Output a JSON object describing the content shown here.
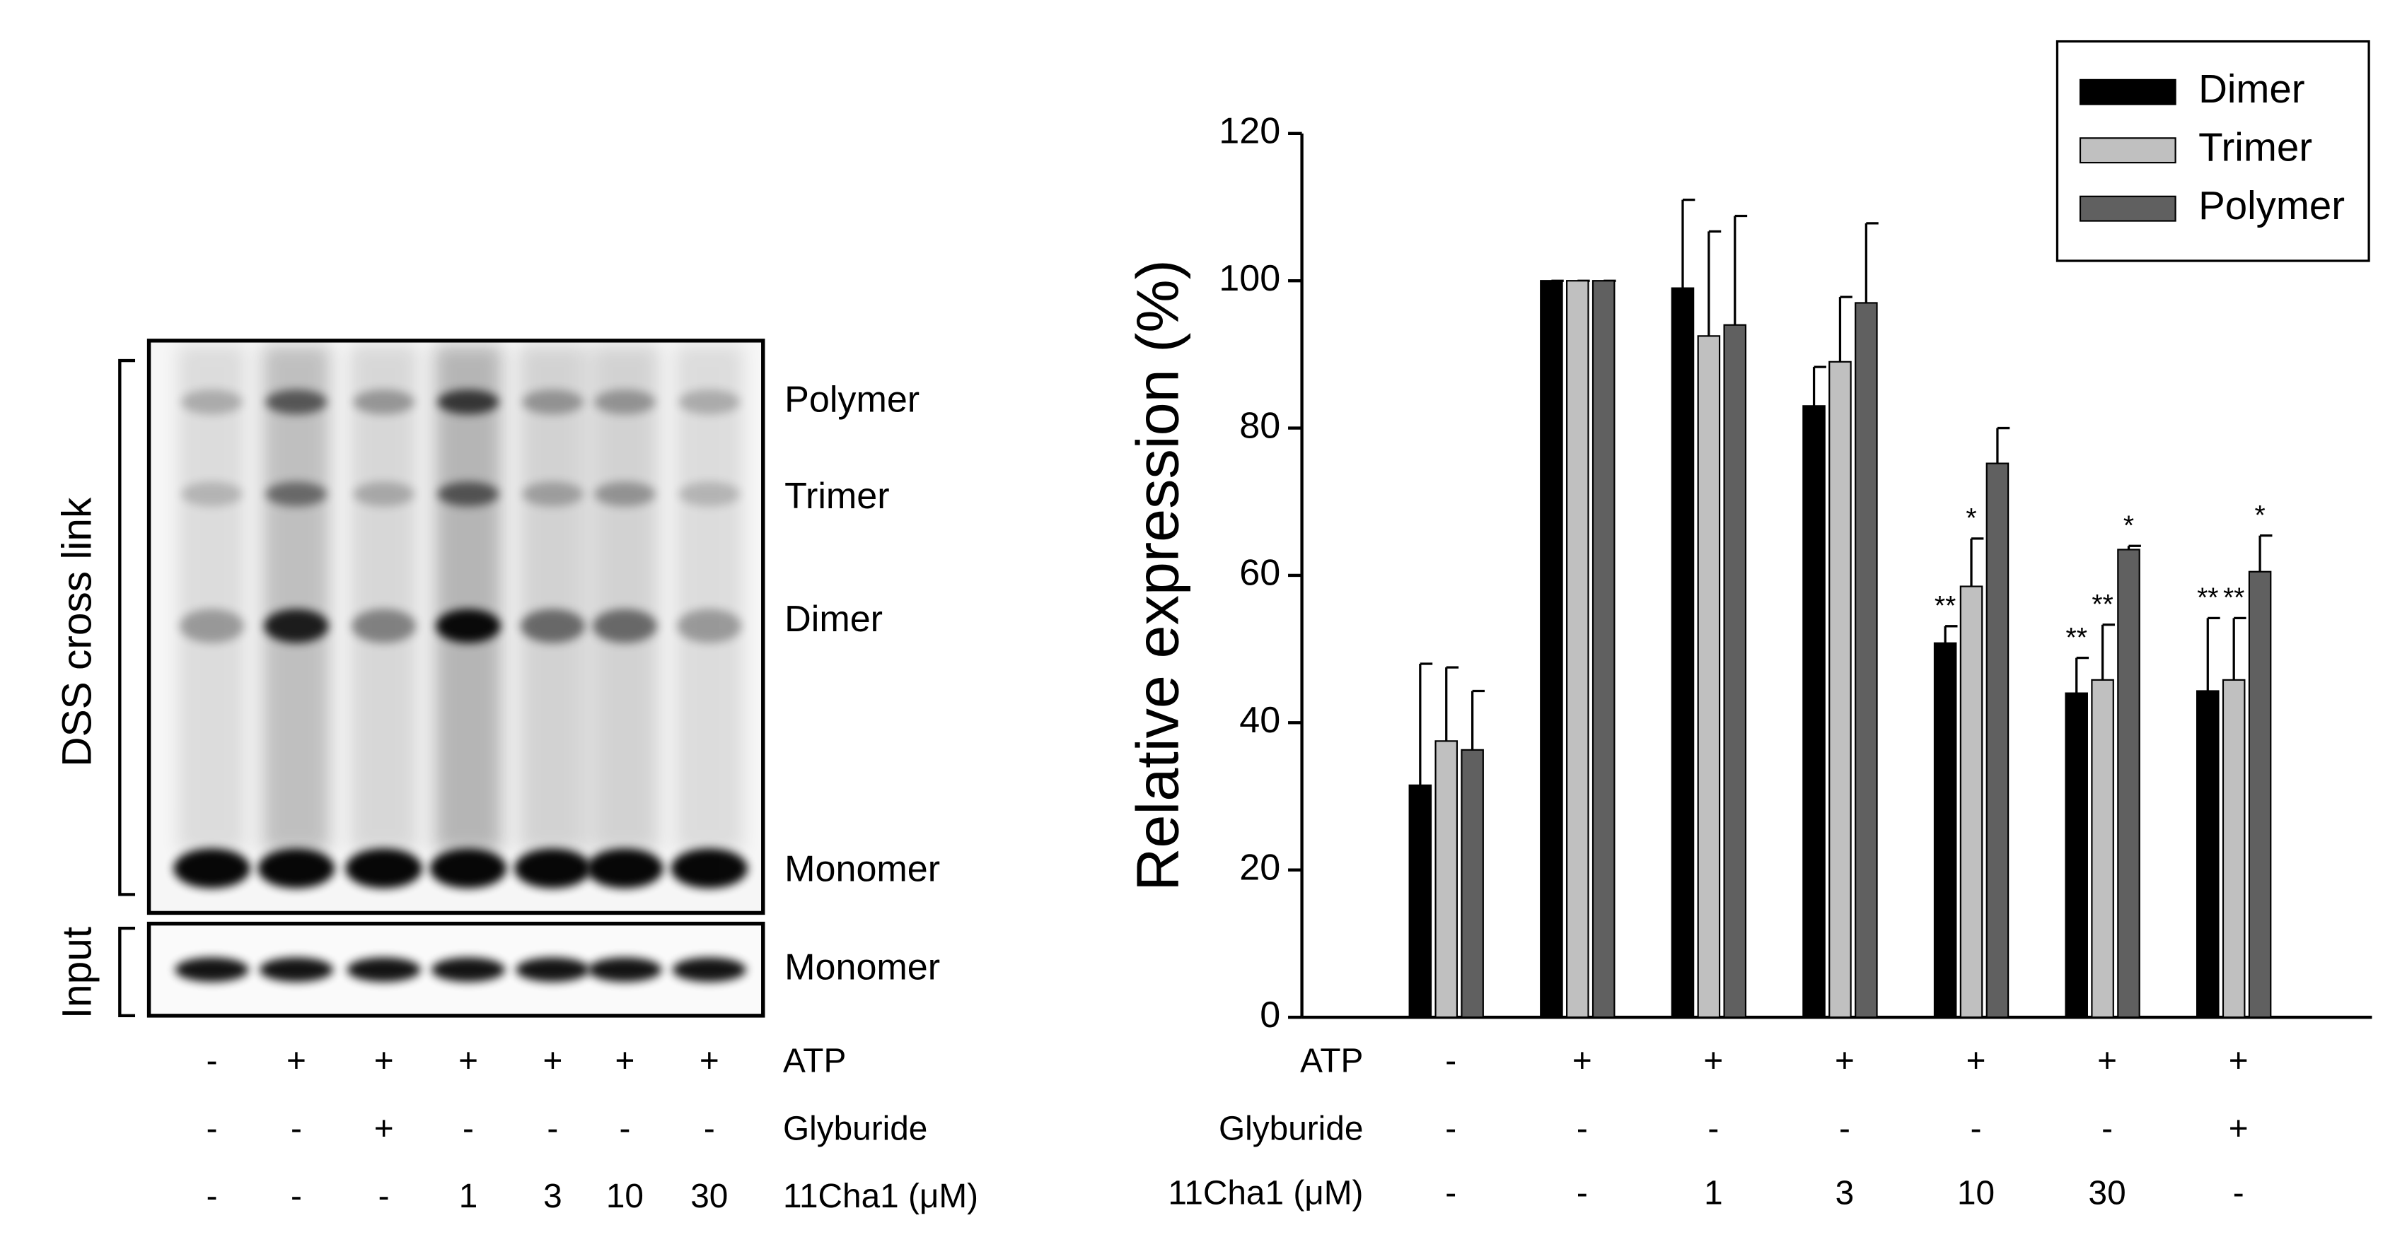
{
  "blot": {
    "bands": [
      "Polymer",
      "Trimer",
      "Dimer",
      "Monomer"
    ],
    "input_band": "Monomer",
    "dss_label": "DSS cross link",
    "input_label": "Input",
    "conditions": [
      {
        "name": "ATP",
        "values": [
          "-",
          "+",
          "+",
          "+",
          "+",
          "+",
          "+"
        ]
      },
      {
        "name": "Glyburide",
        "values": [
          "-",
          "-",
          "+",
          "-",
          "-",
          "-",
          "-"
        ]
      },
      {
        "name": "11Cha1 (μM)",
        "values": [
          "-",
          "-",
          "-",
          "1",
          "3",
          "10",
          "30"
        ]
      }
    ]
  },
  "chart_data": {
    "type": "bar",
    "y_label": "Relative expression (%)",
    "ylim": [
      0,
      120
    ],
    "yticks": [
      0,
      20,
      40,
      60,
      80,
      100,
      120
    ],
    "legend": "top-right",
    "conditions": [
      {
        "name": "ATP",
        "values": [
          "-",
          "+",
          "+",
          "+",
          "+",
          "+",
          "+"
        ]
      },
      {
        "name": "Glyburide",
        "values": [
          "-",
          "-",
          "-",
          "-",
          "-",
          "-",
          "+"
        ]
      },
      {
        "name": "11Cha1 (μM)",
        "values": [
          "-",
          "-",
          "1",
          "3",
          "10",
          "30",
          "-"
        ]
      }
    ],
    "series": [
      {
        "name": "Dimer",
        "color": "#000000",
        "values": [
          31.5,
          100,
          99,
          83,
          50.8,
          44,
          44.3
        ],
        "errors": [
          16.5,
          0,
          12,
          5.3,
          2.3,
          4.8,
          9.9
        ],
        "significance": [
          null,
          null,
          null,
          null,
          "**",
          "**",
          "**"
        ]
      },
      {
        "name": "Trimer",
        "color": "#c0c0c0",
        "values": [
          37.5,
          100,
          92.5,
          89,
          58.5,
          45.8,
          45.8
        ],
        "errors": [
          10,
          0,
          14.2,
          8.8,
          6.5,
          7.5,
          8.4
        ],
        "significance": [
          null,
          null,
          null,
          null,
          "*",
          "**",
          "**"
        ]
      },
      {
        "name": "Polymer",
        "color": "#606060",
        "values": [
          36.3,
          100,
          94,
          97,
          75.2,
          63.5,
          60.5
        ],
        "errors": [
          8,
          0,
          14.8,
          10.8,
          4.8,
          0.5,
          4.9
        ],
        "significance": [
          null,
          null,
          null,
          null,
          null,
          "*",
          "*"
        ]
      }
    ]
  }
}
